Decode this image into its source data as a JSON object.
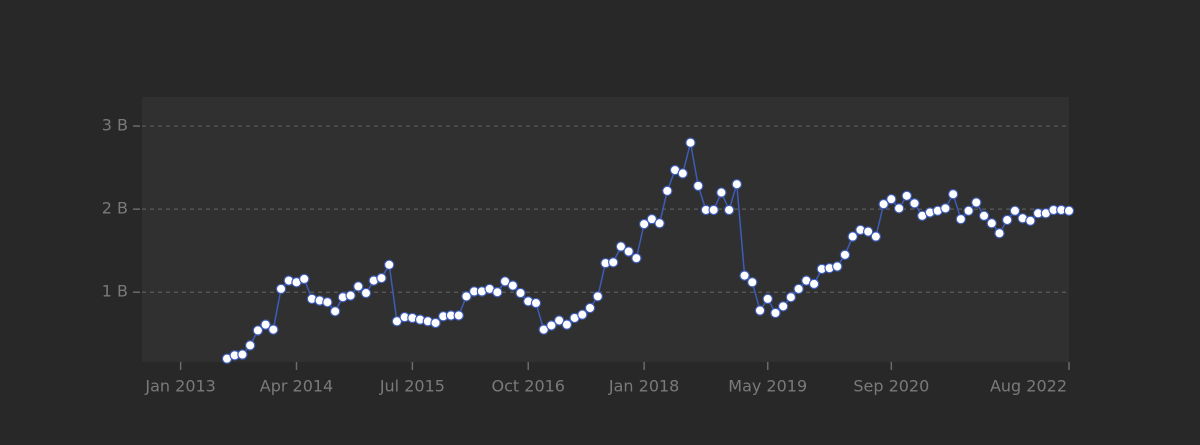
{
  "chart_data": {
    "type": "line",
    "x": [
      "2013-07",
      "2013-08",
      "2013-09",
      "2013-10",
      "2013-11",
      "2013-12",
      "2014-01",
      "2014-02",
      "2014-03",
      "2014-04",
      "2014-05",
      "2014-06",
      "2014-07",
      "2014-08",
      "2014-09",
      "2014-10",
      "2014-11",
      "2014-12",
      "2015-01",
      "2015-02",
      "2015-03",
      "2015-04",
      "2015-05",
      "2015-06",
      "2015-07",
      "2015-08",
      "2015-09",
      "2015-10",
      "2015-11",
      "2015-12",
      "2016-01",
      "2016-02",
      "2016-03",
      "2016-04",
      "2016-05",
      "2016-06",
      "2016-07",
      "2016-08",
      "2016-09",
      "2016-10",
      "2016-11",
      "2016-12",
      "2017-01",
      "2017-02",
      "2017-03",
      "2017-04",
      "2017-05",
      "2017-06",
      "2017-07",
      "2017-08",
      "2017-09",
      "2017-10",
      "2017-11",
      "2017-12",
      "2018-01",
      "2018-02",
      "2018-03",
      "2018-04",
      "2018-05",
      "2018-06",
      "2018-07",
      "2018-08",
      "2018-09",
      "2018-10",
      "2018-11",
      "2018-12",
      "2019-01",
      "2019-02",
      "2019-03",
      "2019-04",
      "2019-05",
      "2019-06",
      "2019-07",
      "2019-08",
      "2019-09",
      "2019-10",
      "2019-11",
      "2019-12",
      "2020-01",
      "2020-02",
      "2020-03",
      "2020-04",
      "2020-05",
      "2020-06",
      "2020-07",
      "2020-08",
      "2020-09",
      "2020-10",
      "2020-11",
      "2020-12",
      "2021-01",
      "2021-02",
      "2021-03",
      "2021-04",
      "2021-05",
      "2021-06",
      "2021-07",
      "2021-08",
      "2021-09",
      "2021-10",
      "2021-11",
      "2021-12",
      "2022-01",
      "2022-02",
      "2022-03",
      "2022-04",
      "2022-05",
      "2022-06",
      "2022-07",
      "2022-08"
    ],
    "series": [
      {
        "color": "#3d5cb8",
        "marker_fill": "#ffffff",
        "values": [
          0.2,
          0.24,
          0.25,
          0.36,
          0.54,
          0.61,
          0.55,
          1.04,
          1.14,
          1.12,
          1.16,
          0.92,
          0.9,
          0.88,
          0.77,
          0.94,
          0.96,
          1.07,
          0.99,
          1.14,
          1.17,
          1.33,
          0.65,
          0.7,
          0.69,
          0.67,
          0.65,
          0.63,
          0.71,
          0.72,
          0.72,
          0.95,
          1.01,
          1.01,
          1.04,
          1.0,
          1.13,
          1.08,
          0.99,
          0.89,
          0.87,
          0.55,
          0.6,
          0.66,
          0.61,
          0.69,
          0.73,
          0.81,
          0.95,
          1.35,
          1.36,
          1.55,
          1.49,
          1.41,
          1.82,
          1.88,
          1.83,
          2.22,
          2.47,
          2.43,
          2.8,
          2.28,
          1.99,
          1.99,
          2.2,
          1.99,
          2.3,
          1.2,
          1.12,
          0.78,
          0.92,
          0.75,
          0.83,
          0.94,
          1.04,
          1.14,
          1.1,
          1.28,
          1.29,
          1.31,
          1.45,
          1.67,
          1.75,
          1.73,
          1.67,
          2.06,
          2.12,
          2.01,
          2.16,
          2.07,
          1.92,
          1.96,
          1.98,
          2.01,
          2.18,
          1.88,
          1.98,
          2.08,
          1.92,
          1.83,
          1.71,
          1.87,
          1.98,
          1.89,
          1.86,
          1.95,
          1.95,
          1.99,
          1.99,
          1.98
        ]
      }
    ],
    "xlim": [
      "2012-08",
      "2022-08"
    ],
    "xticks": [
      {
        "value": "2013-01",
        "label": "Jan 2013"
      },
      {
        "value": "2014-04",
        "label": "Apr 2014"
      },
      {
        "value": "2015-07",
        "label": "Jul 2015"
      },
      {
        "value": "2016-10",
        "label": "Oct 2016"
      },
      {
        "value": "2018-01",
        "label": "Jan 2018"
      },
      {
        "value": "2019-05",
        "label": "May 2019"
      },
      {
        "value": "2020-09",
        "label": "Sep 2020"
      },
      {
        "value": "2022-08",
        "label": "Aug 2022"
      }
    ],
    "ylim": [
      0.16,
      3.35
    ],
    "yticks": [
      {
        "value": 1,
        "label": "1 B"
      },
      {
        "value": 2,
        "label": "2 B"
      },
      {
        "value": 3,
        "label": "3 B"
      }
    ],
    "grid": true
  }
}
